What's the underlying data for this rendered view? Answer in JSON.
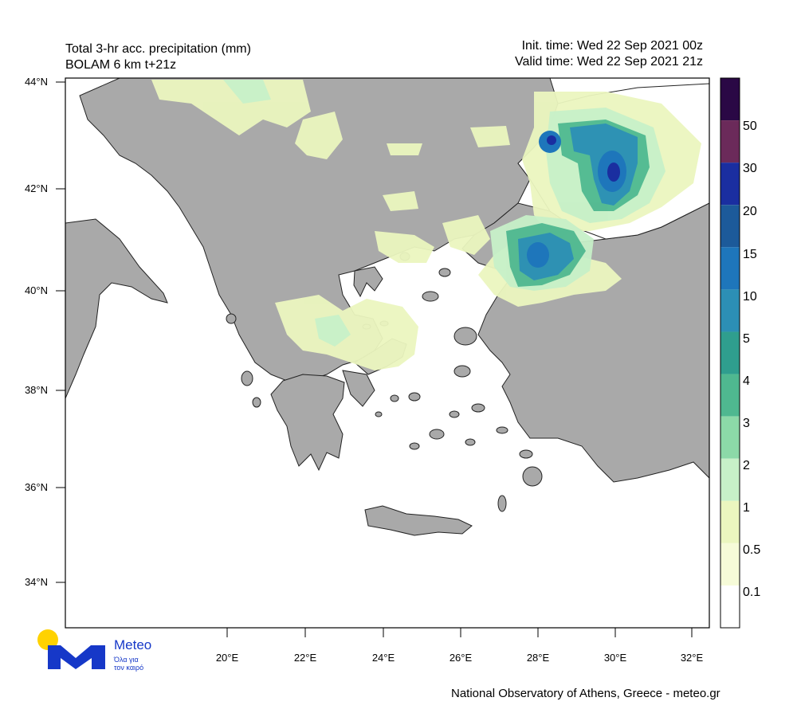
{
  "header": {
    "title_line1": "Total 3-hr acc. precipitation (mm)",
    "title_line2": "BOLAM 6 km t+21z",
    "init_time": "Init. time: Wed 22 Sep 2021 00z",
    "valid_time": "Valid time: Wed 22 Sep 2021 21z"
  },
  "axes": {
    "lat_ticks": [
      "44°N",
      "42°N",
      "40°N",
      "38°N",
      "36°N",
      "34°N"
    ],
    "lon_ticks": [
      "20°E",
      "22°E",
      "24°E",
      "26°E",
      "28°E",
      "30°E",
      "32°E"
    ]
  },
  "colorbar": {
    "labels": [
      "50",
      "30",
      "20",
      "15",
      "10",
      "5",
      "4",
      "3",
      "2",
      "1",
      "0.5",
      "0.1"
    ],
    "colors": [
      "#2a0845",
      "#6b2a5a",
      "#1a2ea0",
      "#1c5a9a",
      "#1e76bb",
      "#2c8fb5",
      "#2f9e8e",
      "#4fb890",
      "#8cd9a8",
      "#c7f0c8",
      "#ebf6bf",
      "#f6fbd8",
      "#ffffff"
    ]
  },
  "colors": {
    "land": "#a9a9a9",
    "sea": "#ffffff",
    "border": "#222222"
  },
  "logo": {
    "name": "Meteo",
    "tagline_1": "Όλα για",
    "tagline_2": "τον καιρό"
  },
  "footer": "National Observatory of Athens, Greece - meteo.gr"
}
